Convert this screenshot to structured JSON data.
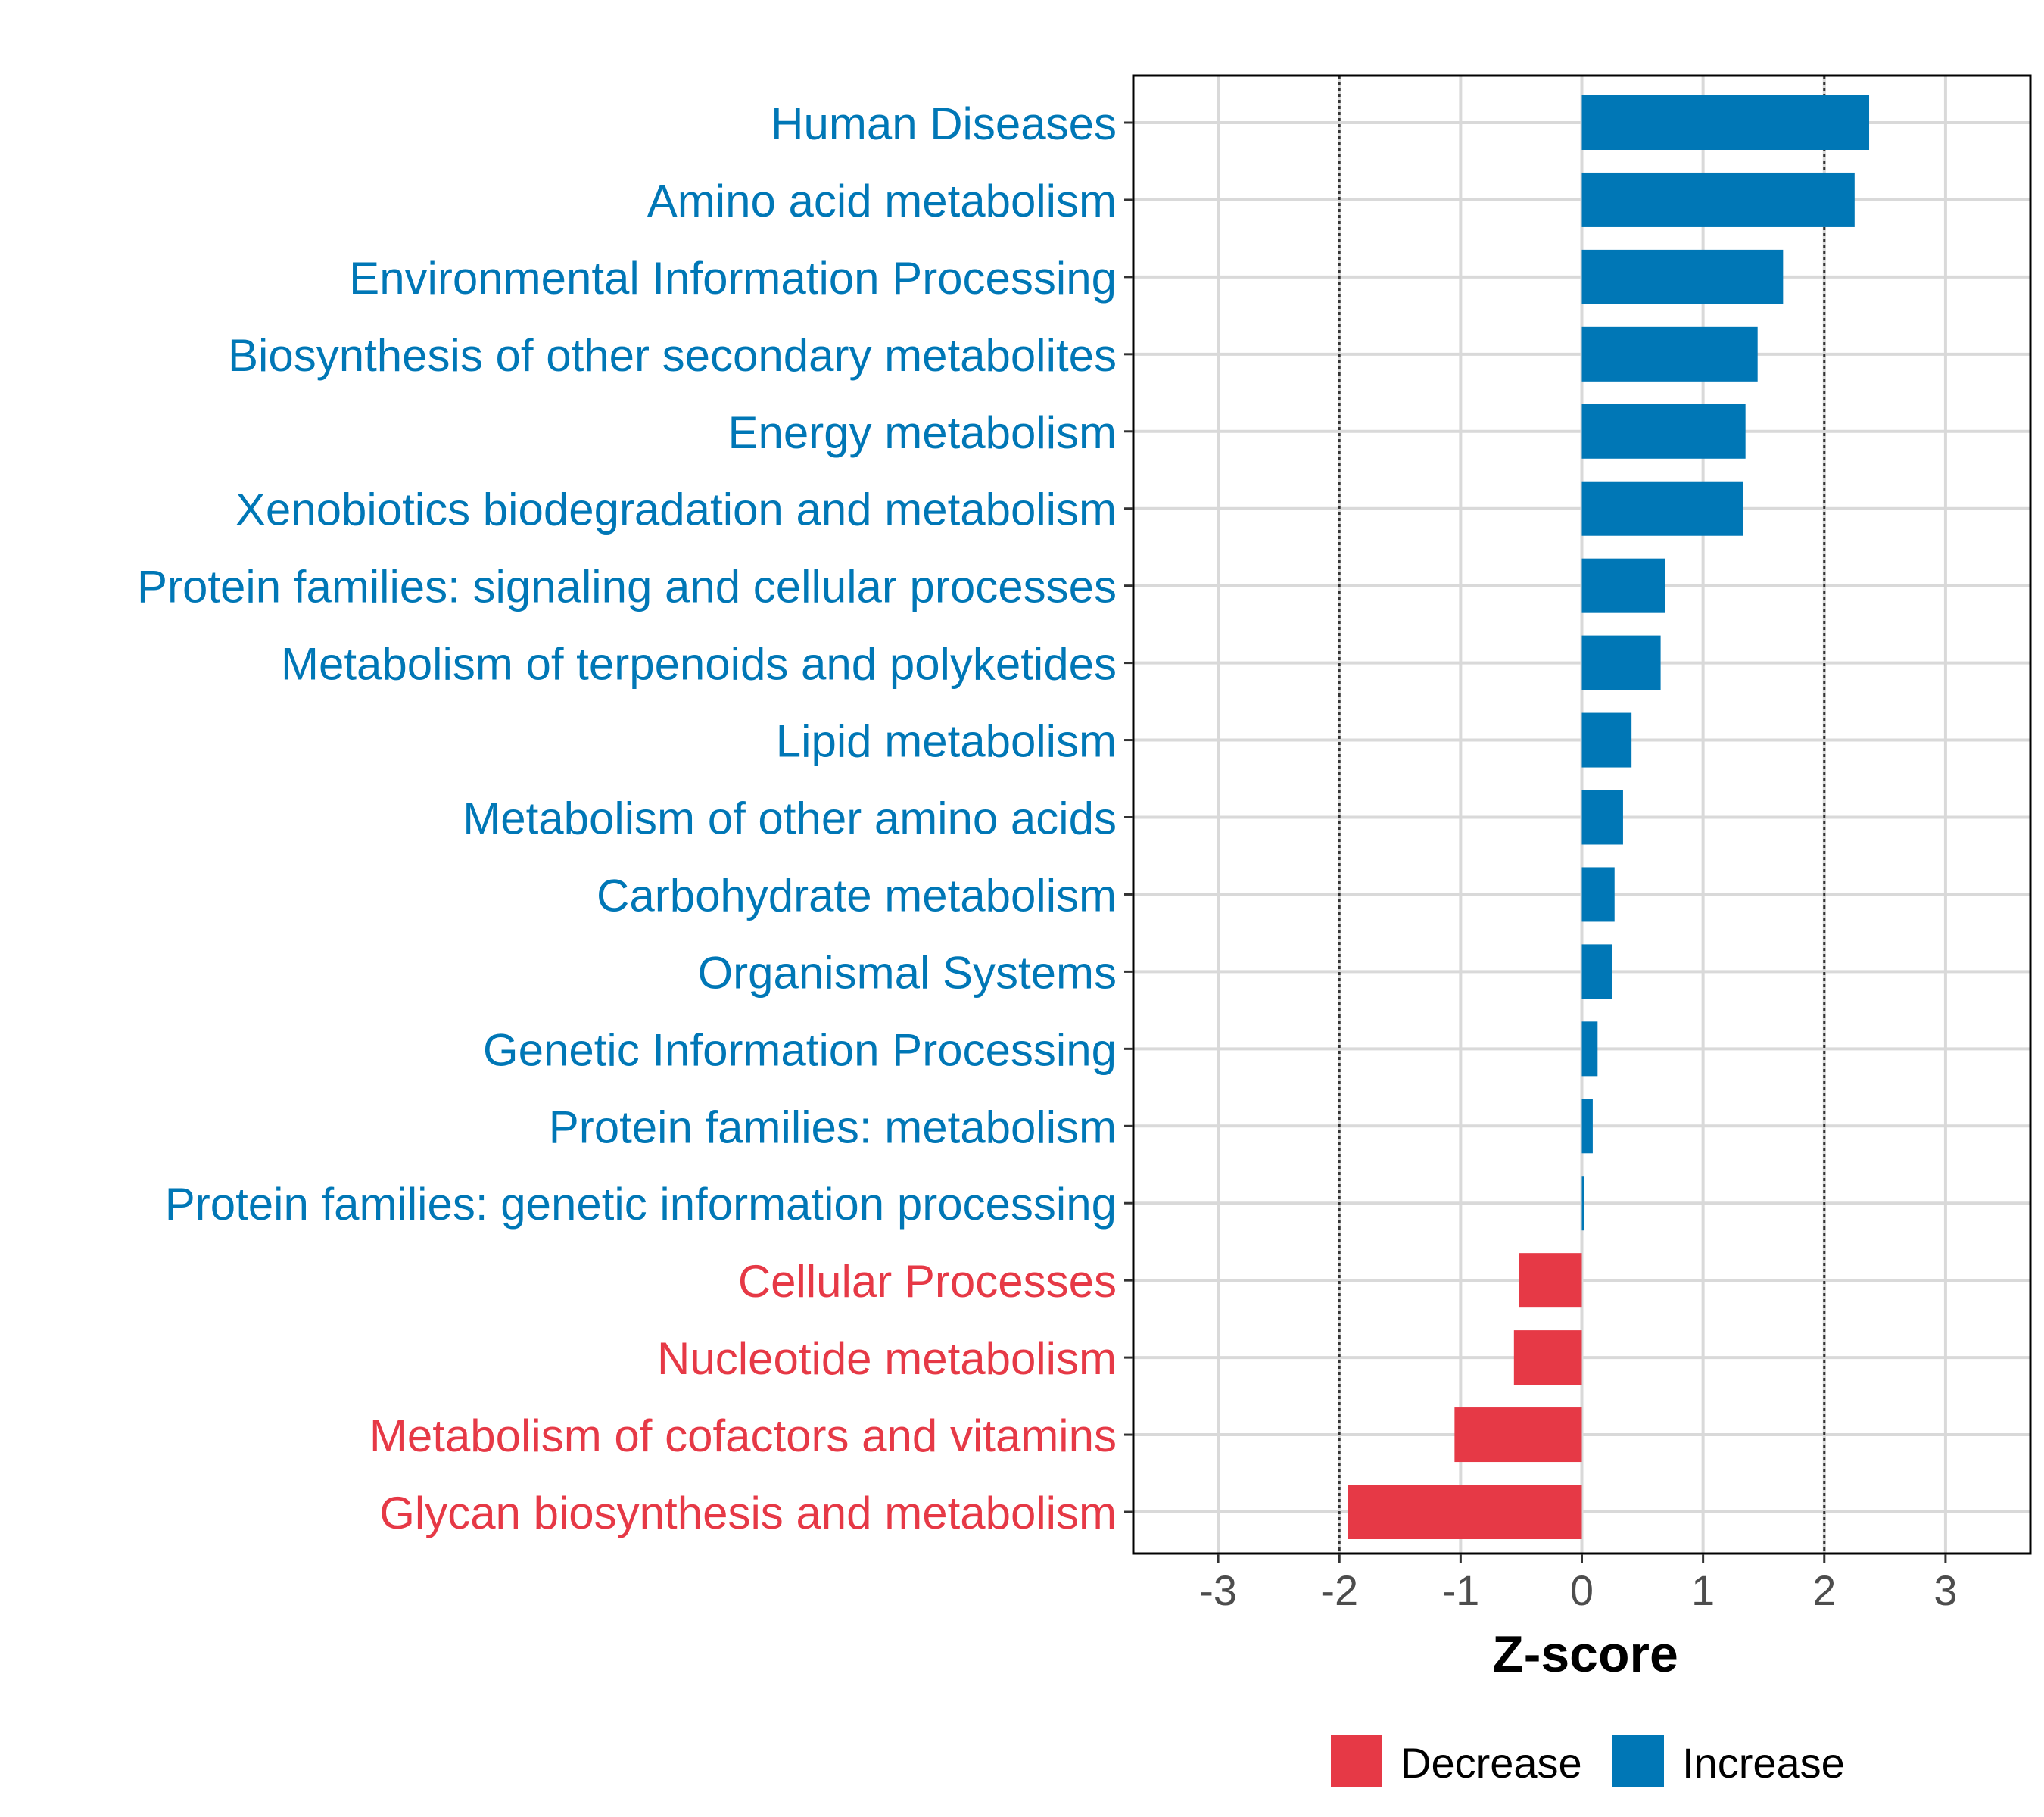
{
  "chart_data": {
    "type": "bar",
    "orientation": "horizontal",
    "title": "",
    "xlabel": "Z-score",
    "ylabel": "",
    "xlim": [
      -3.7,
      3.7
    ],
    "xticks": [
      -3,
      -2,
      -1,
      0,
      1,
      2,
      3
    ],
    "xtick_labels": [
      "-3",
      "-2",
      "-1",
      "0",
      "1",
      "2",
      "3"
    ],
    "reference_lines": [
      -2,
      2
    ],
    "grid": true,
    "legend_position": "bottom",
    "colors": {
      "Decrease": "#E63946",
      "Increase": "#0077B6"
    },
    "categories": [
      "Human Diseases",
      "Amino acid metabolism",
      "Environmental Information Processing",
      "Biosynthesis of other secondary metabolites",
      "Energy metabolism",
      "Xenobiotics biodegradation and metabolism",
      "Protein families: signaling and cellular processes",
      "Metabolism of terpenoids and polyketides",
      "Lipid metabolism",
      "Metabolism of other amino acids",
      "Carbohydrate metabolism",
      "Organismal Systems",
      "Genetic Information Processing",
      "Protein families: metabolism",
      "Protein families: genetic information processing",
      "Cellular Processes",
      "Nucleotide metabolism",
      "Metabolism of cofactors and vitamins",
      "Glycan biosynthesis and metabolism"
    ],
    "values": [
      2.37,
      2.25,
      1.66,
      1.45,
      1.35,
      1.33,
      0.69,
      0.65,
      0.41,
      0.34,
      0.27,
      0.25,
      0.13,
      0.09,
      0.02,
      -0.52,
      -0.56,
      -1.05,
      -1.93
    ],
    "groups": [
      "Increase",
      "Increase",
      "Increase",
      "Increase",
      "Increase",
      "Increase",
      "Increase",
      "Increase",
      "Increase",
      "Increase",
      "Increase",
      "Increase",
      "Increase",
      "Increase",
      "Increase",
      "Decrease",
      "Decrease",
      "Decrease",
      "Decrease"
    ],
    "legend": [
      {
        "label": "Decrease",
        "color": "#E63946"
      },
      {
        "label": "Increase",
        "color": "#0077B6"
      }
    ]
  }
}
